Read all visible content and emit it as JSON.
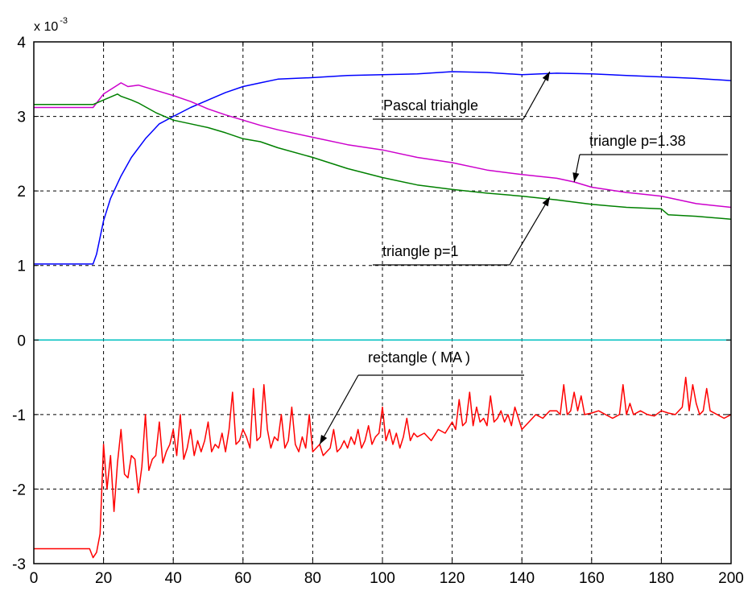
{
  "chart_data": {
    "type": "line",
    "title": "",
    "xlabel": "",
    "ylabel": "",
    "y_exponent_label": "x 10",
    "y_exponent_power": "-3",
    "xlim": [
      0,
      200
    ],
    "ylim": [
      -3,
      4
    ],
    "grid": true,
    "grid_style": "dashed",
    "xticks": [
      0,
      20,
      40,
      60,
      80,
      100,
      120,
      140,
      160,
      180,
      200
    ],
    "yticks": [
      -3,
      -2,
      -1,
      0,
      1,
      2,
      3,
      4
    ],
    "xtick_labels": [
      "0",
      "20",
      "40",
      "60",
      "80",
      "100",
      "120",
      "140",
      "160",
      "180",
      "200"
    ],
    "ytick_labels": [
      "-3",
      "-2",
      "-1",
      "0",
      "1",
      "2",
      "3",
      "4"
    ],
    "series": [
      {
        "color": "#0000ff",
        "x": [
          0,
          17,
          18,
          20,
          22,
          25,
          28,
          32,
          36,
          40,
          45,
          50,
          55,
          60,
          65,
          70,
          80,
          90,
          100,
          110,
          120,
          130,
          140,
          150,
          160,
          170,
          180,
          190,
          200
        ],
        "y": [
          1.02,
          1.02,
          1.15,
          1.6,
          1.9,
          2.2,
          2.45,
          2.7,
          2.9,
          3.0,
          3.12,
          3.22,
          3.32,
          3.4,
          3.45,
          3.5,
          3.52,
          3.55,
          3.56,
          3.57,
          3.6,
          3.59,
          3.56,
          3.58,
          3.57,
          3.55,
          3.53,
          3.51,
          3.48
        ]
      },
      {
        "color": "#cc00cc",
        "x": [
          0,
          17,
          20,
          24,
          25,
          27,
          30,
          35,
          40,
          45,
          50,
          55,
          60,
          65,
          70,
          80,
          90,
          100,
          110,
          120,
          130,
          140,
          150,
          155,
          160,
          170,
          180,
          190,
          200
        ],
        "y": [
          3.12,
          3.12,
          3.3,
          3.42,
          3.45,
          3.4,
          3.42,
          3.35,
          3.28,
          3.2,
          3.1,
          3.02,
          2.95,
          2.88,
          2.82,
          2.72,
          2.62,
          2.55,
          2.45,
          2.38,
          2.28,
          2.22,
          2.17,
          2.12,
          2.05,
          1.98,
          1.93,
          1.83,
          1.78
        ]
      },
      {
        "color": "#008000",
        "x": [
          0,
          17,
          20,
          24,
          25,
          28,
          30,
          35,
          40,
          45,
          50,
          55,
          60,
          65,
          70,
          80,
          90,
          100,
          110,
          120,
          130,
          140,
          150,
          160,
          170,
          180,
          182,
          190,
          200
        ],
        "y": [
          3.16,
          3.16,
          3.22,
          3.3,
          3.27,
          3.22,
          3.18,
          3.05,
          2.95,
          2.9,
          2.85,
          2.78,
          2.7,
          2.66,
          2.58,
          2.45,
          2.3,
          2.18,
          2.08,
          2.02,
          1.97,
          1.93,
          1.88,
          1.82,
          1.78,
          1.76,
          1.68,
          1.66,
          1.62
        ]
      },
      {
        "color": "#00c0c0",
        "x": [
          0,
          200
        ],
        "y": [
          0,
          0
        ]
      },
      {
        "color": "#ff0000",
        "x": [
          0,
          15,
          16,
          17,
          18,
          19,
          20,
          21,
          22,
          23,
          24,
          25,
          26,
          27,
          28,
          29,
          30,
          31,
          32,
          33,
          34,
          35,
          36,
          37,
          38,
          39,
          40,
          41,
          42,
          43,
          44,
          45,
          46,
          47,
          48,
          49,
          50,
          51,
          52,
          53,
          54,
          55,
          56,
          57,
          58,
          59,
          60,
          61,
          62,
          63,
          64,
          65,
          66,
          67,
          68,
          69,
          70,
          71,
          72,
          73,
          74,
          75,
          76,
          77,
          78,
          79,
          80,
          81,
          82,
          83,
          84,
          85,
          86,
          87,
          88,
          89,
          90,
          91,
          92,
          93,
          94,
          95,
          96,
          97,
          98,
          99,
          100,
          101,
          102,
          103,
          104,
          105,
          106,
          107,
          108,
          109,
          110,
          112,
          114,
          116,
          118,
          120,
          121,
          122,
          123,
          124,
          125,
          126,
          127,
          128,
          129,
          130,
          131,
          132,
          133,
          134,
          135,
          136,
          137,
          138,
          139,
          140,
          142,
          144,
          146,
          148,
          150,
          151,
          152,
          153,
          154,
          155,
          156,
          157,
          158,
          160,
          162,
          164,
          166,
          168,
          169,
          170,
          171,
          172,
          174,
          176,
          178,
          180,
          182,
          184,
          186,
          187,
          188,
          189,
          190,
          191,
          192,
          193,
          194,
          196,
          198,
          200
        ],
        "y": [
          -2.8,
          -2.8,
          -2.8,
          -2.92,
          -2.85,
          -2.6,
          -1.4,
          -2.0,
          -1.55,
          -2.3,
          -1.65,
          -1.2,
          -1.8,
          -1.85,
          -1.55,
          -1.6,
          -2.05,
          -1.7,
          -1.0,
          -1.75,
          -1.6,
          -1.55,
          -1.1,
          -1.65,
          -1.5,
          -1.4,
          -1.2,
          -1.55,
          -1.0,
          -1.6,
          -1.45,
          -1.2,
          -1.55,
          -1.35,
          -1.5,
          -1.35,
          -1.1,
          -1.5,
          -1.4,
          -1.45,
          -1.25,
          -1.5,
          -1.2,
          -0.7,
          -1.4,
          -1.35,
          -1.2,
          -1.3,
          -1.45,
          -0.65,
          -1.35,
          -1.3,
          -0.6,
          -1.2,
          -1.45,
          -1.3,
          -1.35,
          -1.0,
          -1.45,
          -1.35,
          -0.9,
          -1.4,
          -1.5,
          -1.3,
          -1.45,
          -1.0,
          -1.5,
          -1.45,
          -1.4,
          -1.55,
          -1.5,
          -1.45,
          -1.2,
          -1.5,
          -1.45,
          -1.35,
          -1.45,
          -1.3,
          -1.4,
          -1.2,
          -1.45,
          -1.35,
          -1.15,
          -1.4,
          -1.3,
          -1.25,
          -0.9,
          -1.35,
          -1.2,
          -1.4,
          -1.25,
          -1.45,
          -1.3,
          -1.05,
          -1.35,
          -1.25,
          -1.3,
          -1.25,
          -1.35,
          -1.2,
          -1.25,
          -1.1,
          -1.2,
          -0.8,
          -1.15,
          -1.1,
          -0.7,
          -1.15,
          -0.9,
          -1.1,
          -1.05,
          -1.15,
          -0.75,
          -1.1,
          -1.05,
          -0.95,
          -1.1,
          -1.0,
          -1.15,
          -0.9,
          -1.05,
          -1.2,
          -1.1,
          -1.0,
          -1.05,
          -0.95,
          -0.95,
          -1.0,
          -0.6,
          -1.0,
          -0.95,
          -0.7,
          -0.95,
          -0.75,
          -1.0,
          -0.98,
          -0.95,
          -1.0,
          -1.05,
          -1.0,
          -0.6,
          -1.0,
          -0.85,
          -1.0,
          -0.95,
          -1.0,
          -1.02,
          -0.95,
          -0.98,
          -1.0,
          -0.9,
          -0.5,
          -0.95,
          -0.6,
          -0.85,
          -1.0,
          -0.95,
          -0.65,
          -0.95,
          -1.0,
          -1.05,
          -1.0
        ],
        "name": ""
      }
    ],
    "annotations": [
      {
        "text": "Pascal triangle",
        "points_to": [
          148,
          3.6
        ]
      },
      {
        "text": "triangle p=1.38",
        "points_to": [
          155,
          2.12
        ]
      },
      {
        "text": "triangle p=1",
        "points_to": [
          148,
          1.92
        ]
      },
      {
        "text": "rectangle ( MA )",
        "points_to": [
          82,
          -1.4
        ]
      }
    ]
  }
}
